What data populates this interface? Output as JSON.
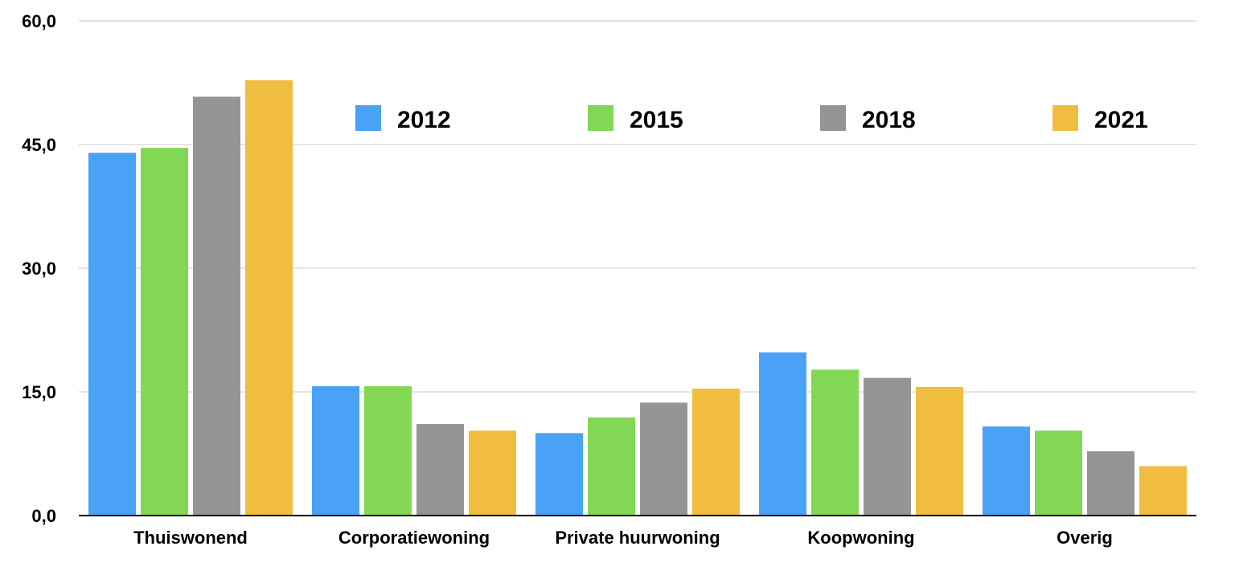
{
  "chart_data": {
    "type": "bar",
    "title": "",
    "xlabel": "",
    "ylabel": "",
    "ylim": [
      0,
      60
    ],
    "yticks": [
      "0,0",
      "15,0",
      "30,0",
      "45,0",
      "60,0"
    ],
    "ytick_values": [
      0,
      15,
      30,
      45,
      60
    ],
    "grid": true,
    "legend_position": "top-right",
    "categories": [
      "Thuiswonend",
      "Corporatiewoning",
      "Private huurwoning",
      "Koopwoning",
      "Overig"
    ],
    "series": [
      {
        "name": "2012",
        "color": "#4aa2f7",
        "values": [
          44.0,
          15.7,
          10.0,
          19.8,
          10.8
        ]
      },
      {
        "name": "2015",
        "color": "#82d855",
        "values": [
          44.6,
          15.7,
          11.9,
          17.7,
          10.3
        ]
      },
      {
        "name": "2018",
        "color": "#959595",
        "values": [
          50.8,
          11.1,
          13.7,
          16.7,
          7.8
        ]
      },
      {
        "name": "2021",
        "color": "#f0bd40",
        "values": [
          52.8,
          10.3,
          15.4,
          15.6,
          6.0
        ]
      }
    ],
    "colors": {
      "grid": "#c8c8c8",
      "axis": "#000000",
      "text": "#000000"
    }
  }
}
